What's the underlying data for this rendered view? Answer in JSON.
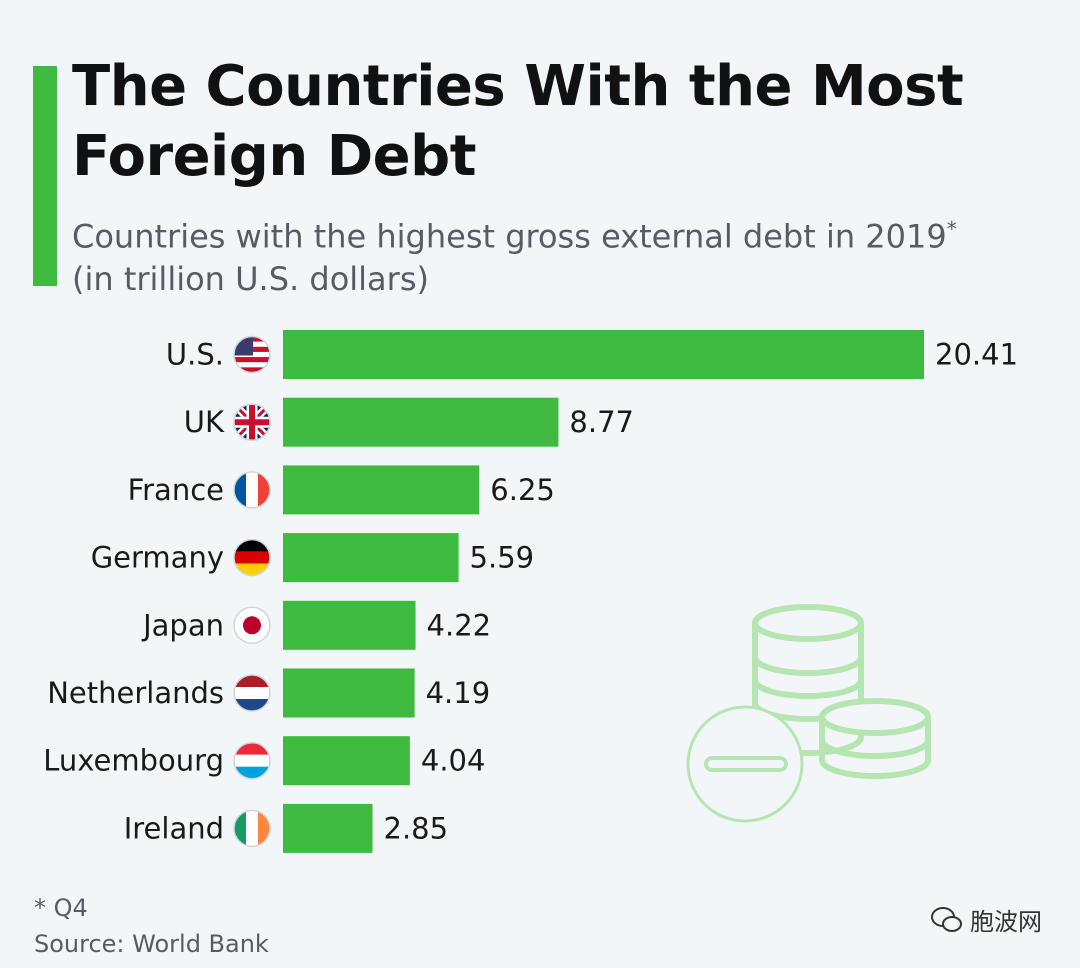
{
  "header": {
    "title": "The Countries With the Most Foreign Debt",
    "subtitle_main": "Countries with the highest gross external debt in 2019",
    "subtitle_marker": "*",
    "subtitle_unit": " (in trillion U.S. dollars)"
  },
  "chart_data": {
    "type": "bar",
    "orientation": "horizontal",
    "title": "The Countries With the Most Foreign Debt",
    "subtitle": "Countries with the highest gross external debt in 2019* (in trillion U.S. dollars)",
    "categories": [
      "U.S.",
      "UK",
      "France",
      "Germany",
      "Japan",
      "Netherlands",
      "Luxembourg",
      "Ireland"
    ],
    "values": [
      20.41,
      8.77,
      6.25,
      5.59,
      4.22,
      4.19,
      4.04,
      2.85
    ],
    "value_labels": [
      "20.41",
      "8.77",
      "6.25",
      "5.59",
      "4.22",
      "4.19",
      "4.04",
      "2.85"
    ],
    "flags": [
      "us-flag-icon",
      "uk-flag-icon",
      "france-flag-icon",
      "germany-flag-icon",
      "japan-flag-icon",
      "netherlands-flag-icon",
      "luxembourg-flag-icon",
      "ireland-flag-icon"
    ],
    "xlim": [
      0,
      20.41
    ],
    "bar_color": "#3ebb3e",
    "grid": false,
    "legend": "none"
  },
  "footer": {
    "footnote": "* Q4",
    "source": "Source: World Bank",
    "watermark": "胞波网"
  },
  "colors": {
    "accent": "#3ebb3e",
    "background": "#f3f6f8",
    "decoration": "#b5e5b0"
  }
}
